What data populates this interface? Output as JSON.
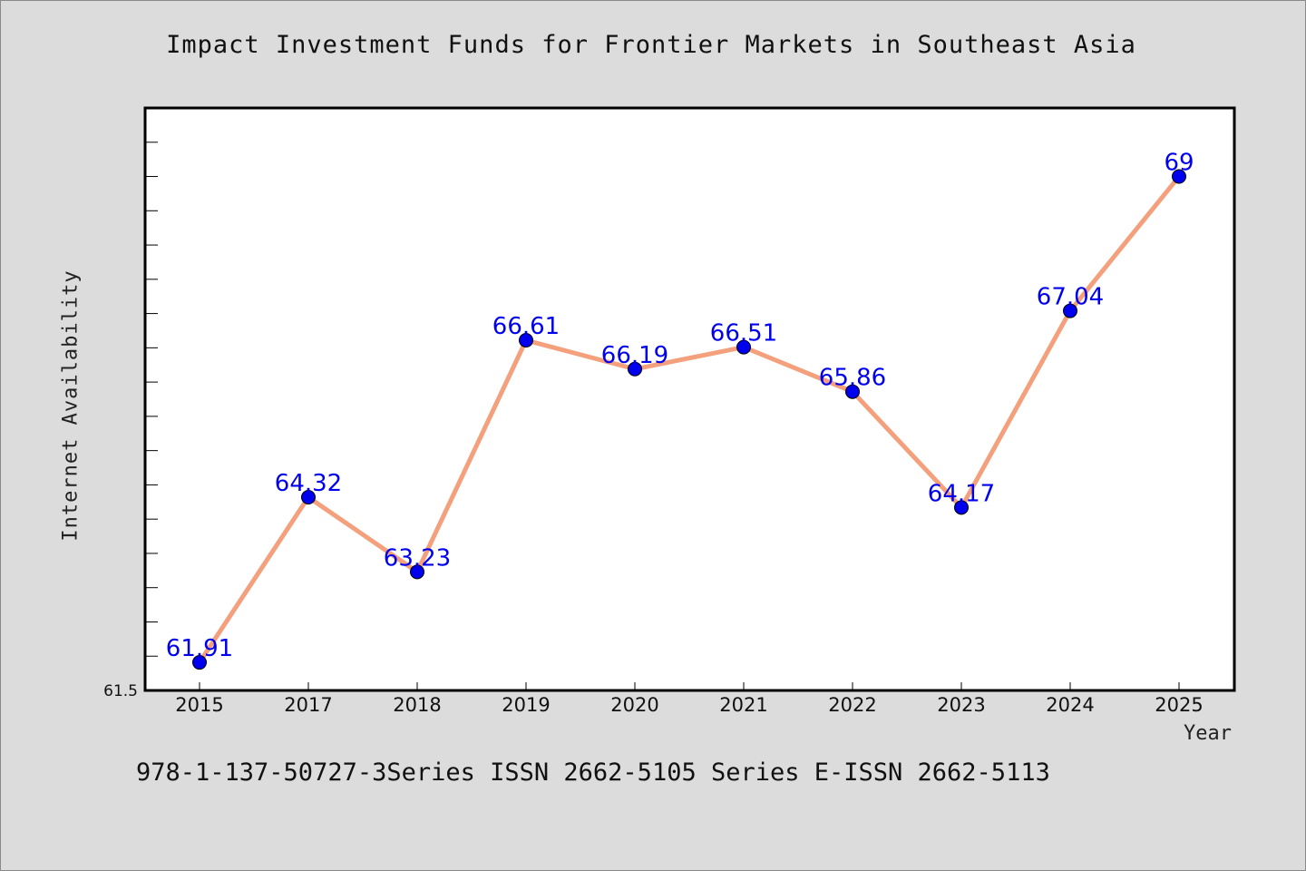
{
  "chart_data": {
    "type": "line",
    "title": "Impact Investment Funds for Frontier Markets in Southeast Asia",
    "xlabel": "Year",
    "ylabel": "Internet Availability",
    "categories": [
      "2015",
      "2017",
      "2018",
      "2019",
      "2020",
      "2021",
      "2022",
      "2023",
      "2024",
      "2025"
    ],
    "values": [
      61.91,
      64.32,
      63.23,
      66.61,
      66.19,
      66.51,
      65.86,
      64.17,
      67.04,
      69
    ],
    "data_labels": [
      "61.91",
      "64.32",
      "63.23",
      "66.61",
      "66.19",
      "66.51",
      "65.86",
      "64.17",
      "67.04",
      "69"
    ],
    "y_min_label": "61.5",
    "ylim": [
      61.5,
      70
    ],
    "grid": false,
    "legend": "none",
    "colors": {
      "line": "#f4a07c",
      "marker": "#0000ee",
      "label": "#0000ee",
      "background": "#dcdcdc",
      "plot_background": "#ffffff"
    }
  },
  "footer": {
    "text": "978-1-137-50727-3Series ISSN 2662-5105 Series E-ISSN 2662-5113"
  }
}
